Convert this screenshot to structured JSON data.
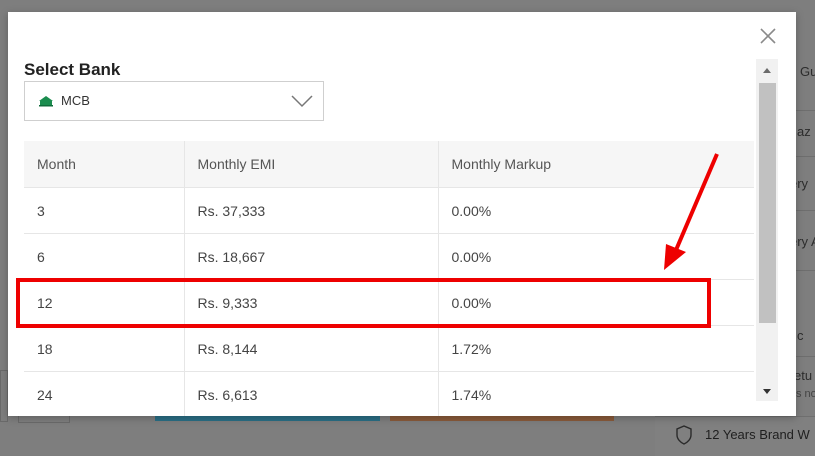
{
  "modal": {
    "title": "Select Bank",
    "bank_select": {
      "selected": "MCB",
      "logo_icon": "mcb-bank-logo-icon"
    },
    "close_icon": "close-icon"
  },
  "table": {
    "headers": [
      "Month",
      "Monthly EMI",
      "Monthly Markup"
    ],
    "rows": [
      {
        "month": "3",
        "emi": "Rs. 37,333",
        "markup": "0.00%"
      },
      {
        "month": "6",
        "emi": "Rs. 18,667",
        "markup": "0.00%"
      },
      {
        "month": "12",
        "emi": "Rs. 9,333",
        "markup": "0.00%"
      },
      {
        "month": "18",
        "emi": "Rs. 8,144",
        "markup": "1.72%"
      },
      {
        "month": "24",
        "emi": "Rs. 6,613",
        "markup": "1.74%"
      }
    ]
  },
  "background": {
    "right_snippets": [
      "Gu",
      "az",
      "ery",
      "ery A",
      "c",
      "etu",
      "s no"
    ],
    "footer_text": "12 Years Brand W"
  },
  "annotation": {
    "highlight_color": "#ee0000",
    "highlighted_row_month": "12"
  }
}
